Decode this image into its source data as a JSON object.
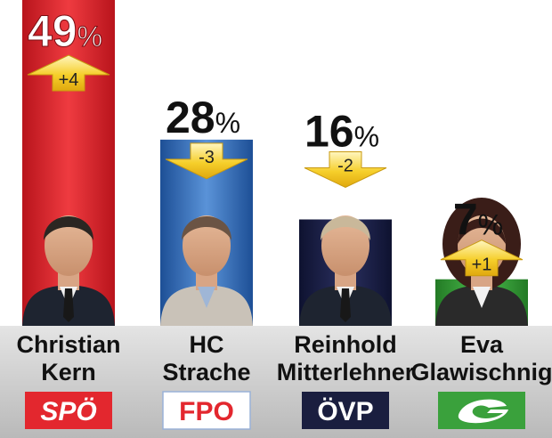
{
  "chart_data": {
    "type": "bar",
    "unit": "%",
    "categories": [
      "Christian Kern",
      "HC Strache",
      "Reinhold Mitterlehner",
      "Eva Glawischnig"
    ],
    "name_lines": [
      [
        "Christian",
        "Kern"
      ],
      [
        "HC",
        "Strache"
      ],
      [
        "Reinhold",
        "Mitterlehner"
      ],
      [
        "Eva",
        "Glawischnig"
      ]
    ],
    "values": [
      49,
      28,
      16,
      7
    ],
    "changes": [
      "+4",
      "-3",
      "-2",
      "+1"
    ],
    "change_direction": [
      "up",
      "down",
      "down",
      "up"
    ],
    "parties": [
      "SPÖ",
      "FPÖ",
      "ÖVP",
      "Grüne"
    ],
    "party_logo_text": [
      "SPÖ",
      "FPO",
      "ÖVP",
      ""
    ],
    "colors": {
      "spo": "#e3272e",
      "fpo": "#2f6fc0",
      "ovp": "#1a1e3f",
      "green": "#3aa13c",
      "arrow": "#f2c21a",
      "label_band": "#c9c9c9"
    },
    "ylim": [
      0,
      49
    ],
    "title": "",
    "xlabel": "",
    "ylabel": ""
  }
}
